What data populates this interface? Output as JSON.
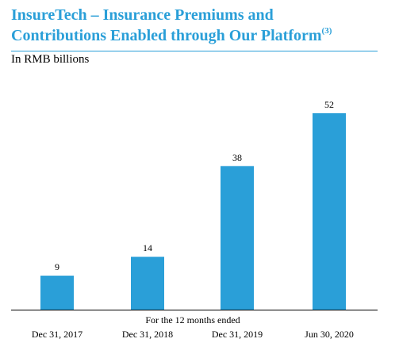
{
  "header": {
    "title_line1": "InsureTech – Insurance Premiums and",
    "title_line2": "Contributions Enabled through Our Platform",
    "title_footnote": "(3)",
    "subtitle": "In RMB billions",
    "title_color": "#2a9fd8",
    "rule_color": "#2a9fd8"
  },
  "chart_data": {
    "type": "bar",
    "title": "InsureTech – Insurance Premiums and Contributions Enabled through Our Platform(3)",
    "subtitle": "In RMB billions",
    "xlabel": "For the 12 months ended",
    "ylabel": "",
    "categories": [
      "Dec 31, 2017",
      "Dec 31, 2018",
      "Dec 31, 2019",
      "Jun 30, 2020"
    ],
    "values": [
      9,
      14,
      38,
      52
    ],
    "data_labels": [
      "9",
      "14",
      "38",
      "52"
    ],
    "ylim": [
      0,
      52
    ],
    "bar_color": "#2a9fd8",
    "grid": false,
    "legend": "none"
  }
}
